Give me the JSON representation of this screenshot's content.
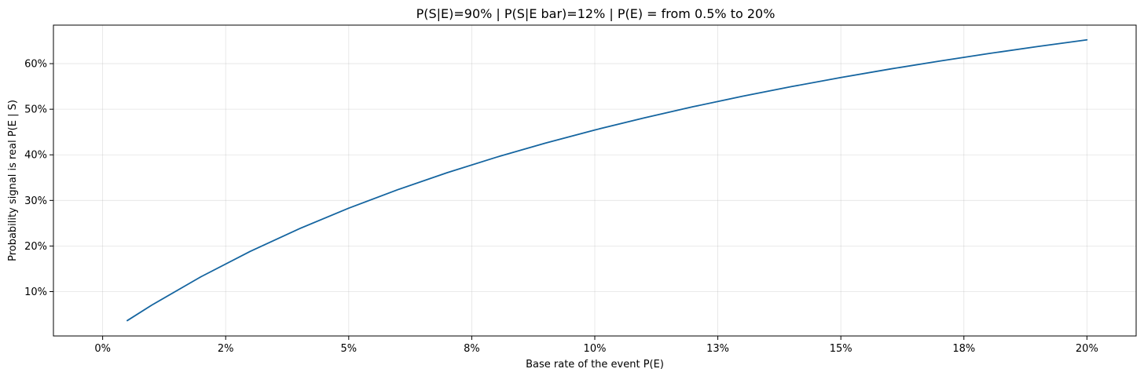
{
  "chart_data": {
    "type": "line",
    "title": "P(S|E)=90% | P(S|E bar)=12% | P(E) = from 0.5% to 20%",
    "xlabel": "Base rate of the event  P(E)",
    "ylabel": "Probability signal is real  P(E | S)",
    "xlim": [
      -0.01,
      0.21
    ],
    "ylim": [
      0.0027,
      0.6845
    ],
    "grid": true,
    "color": "#1565a0",
    "parameters": {
      "p_s_given_e": 0.9,
      "p_s_given_not_e": 0.12,
      "p_e_min": 0.005,
      "p_e_max": 0.2
    },
    "x_ticks": [
      {
        "value": 0,
        "label": "0%"
      },
      {
        "value": 0.025,
        "label": "2%"
      },
      {
        "value": 0.05,
        "label": "5%"
      },
      {
        "value": 0.075,
        "label": "8%"
      },
      {
        "value": 0.1,
        "label": "10%"
      },
      {
        "value": 0.125,
        "label": "13%"
      },
      {
        "value": 0.15,
        "label": "15%"
      },
      {
        "value": 0.175,
        "label": "18%"
      },
      {
        "value": 0.2,
        "label": "20%"
      }
    ],
    "y_ticks": [
      {
        "value": 0.1,
        "label": "10%"
      },
      {
        "value": 0.2,
        "label": "20%"
      },
      {
        "value": 0.3,
        "label": "30%"
      },
      {
        "value": 0.4,
        "label": "40%"
      },
      {
        "value": 0.5,
        "label": "50%"
      },
      {
        "value": 0.6,
        "label": "60%"
      }
    ],
    "series": [
      {
        "name": "P(E | S)",
        "x": [
          0.005,
          0.01,
          0.02,
          0.03,
          0.04,
          0.05,
          0.06,
          0.07,
          0.08,
          0.09,
          0.1,
          0.11,
          0.12,
          0.13,
          0.14,
          0.15,
          0.16,
          0.17,
          0.18,
          0.19,
          0.2
        ],
        "y": [
          0.0364,
          0.0705,
          0.1327,
          0.1883,
          0.2381,
          0.283,
          0.3237,
          0.3608,
          0.3947,
          0.4259,
          0.4545,
          0.481,
          0.5056,
          0.5284,
          0.5497,
          0.5696,
          0.5882,
          0.6056,
          0.6221,
          0.6376,
          0.6522
        ]
      }
    ]
  }
}
